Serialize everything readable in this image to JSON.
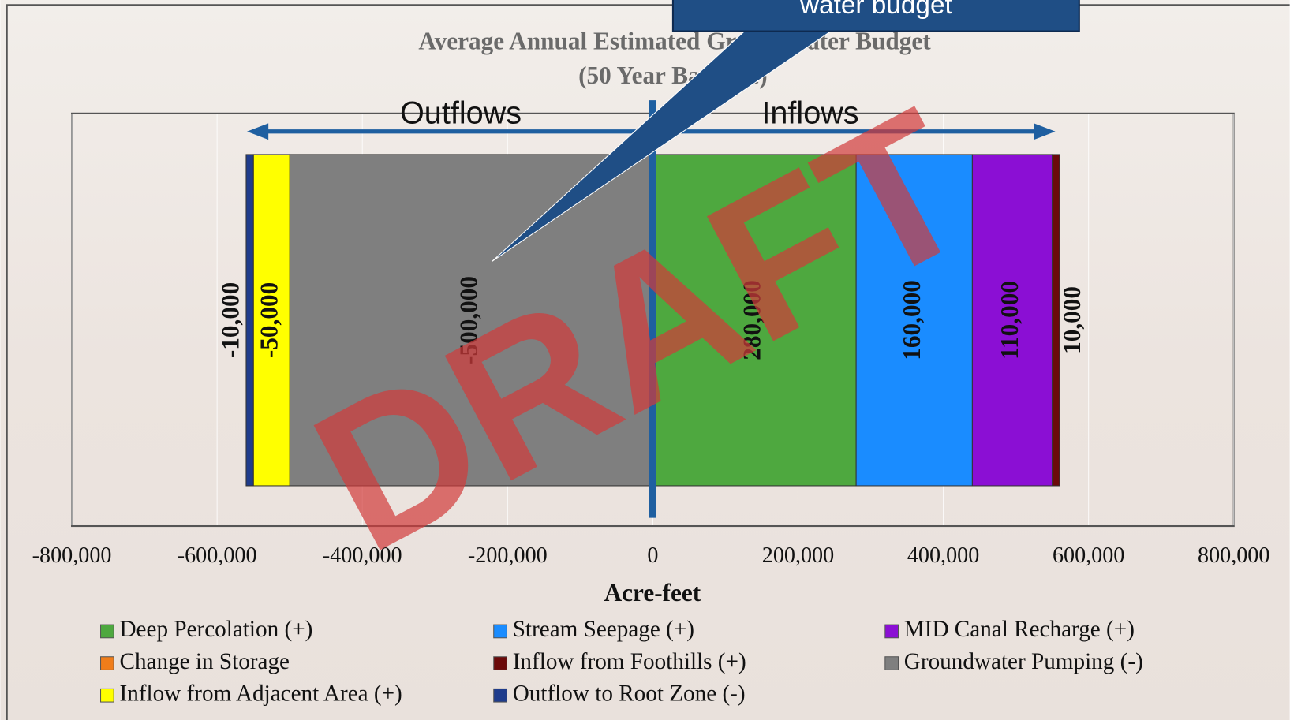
{
  "chart_data": {
    "type": "stacked-barh",
    "title": "Average Annual Estimated Groundwater Budget",
    "subtitle": "(50 Year Baseline)",
    "xlabel": "Acre-feet",
    "annotations": {
      "callout": "water budget",
      "outflows": "Outflows",
      "inflows": "Inflows",
      "watermark": "DRAFT"
    },
    "categories": [
      null
    ],
    "series": [
      {
        "name": "Deep Percolation (+)",
        "color": "#4ea83f",
        "values": [
          280000
        ],
        "value_labels": [
          "280,000"
        ]
      },
      {
        "name": "Stream Seepage (+)",
        "color": "#1a8cff",
        "values": [
          160000
        ],
        "value_labels": [
          "160,000"
        ]
      },
      {
        "name": "MID Canal Recharge (+)",
        "color": "#8b0fd4",
        "values": [
          110000
        ],
        "value_labels": [
          "110,000"
        ]
      },
      {
        "name": "Change in Storage",
        "color": "#f07d1a",
        "values": [
          null
        ]
      },
      {
        "name": "Inflow from Foothills (+)",
        "color": "#6b0a0a",
        "values": [
          10000
        ],
        "value_labels": [
          "10,000"
        ]
      },
      {
        "name": "Groundwater Pumping (-)",
        "color": "#7f7f7f",
        "values": [
          -500000
        ],
        "value_labels": [
          "-500,000"
        ]
      },
      {
        "name": "Inflow from Adjacent Area (+)",
        "color": "#ffff00",
        "values": [
          -50000
        ],
        "value_labels": [
          "-50,000"
        ]
      },
      {
        "name": "Outflow to Root Zone (-)",
        "color": "#1f3c8c",
        "values": [
          -10000
        ],
        "value_labels": [
          "-10,000"
        ]
      }
    ],
    "xlim": [
      -800000,
      800000
    ],
    "xticks": [
      {
        "value": -800000,
        "label": "-800,000"
      },
      {
        "value": -600000,
        "label": "-600,000"
      },
      {
        "value": -400000,
        "label": "-400,000"
      },
      {
        "value": -200000,
        "label": "-200,000"
      },
      0,
      {
        "value": 200000,
        "label": "200,000"
      },
      {
        "value": 400000,
        "label": "400,000"
      },
      {
        "value": 600000,
        "label": "600,000"
      },
      {
        "value": 800000,
        "label": "800,000"
      }
    ],
    "grid": true,
    "legend": "bottom"
  }
}
